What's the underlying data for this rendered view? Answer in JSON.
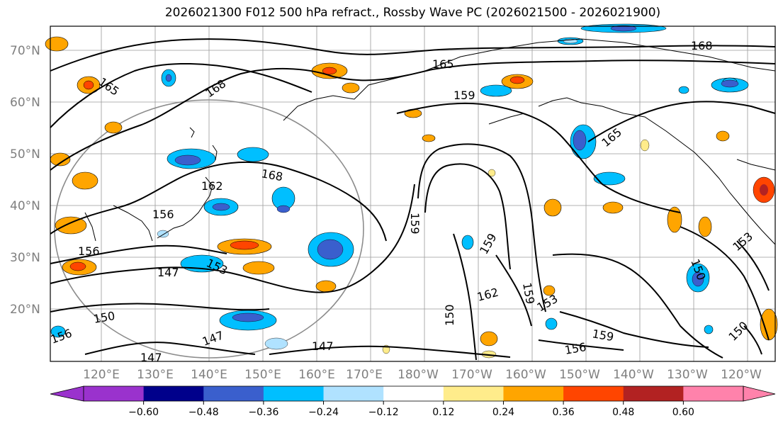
{
  "title": "2026021300 F012 500 hPa refract., Rossby Wave PC (2026021500 - 2026021900)",
  "map": {
    "lat_labels": [
      "70°N",
      "60°N",
      "50°N",
      "40°N",
      "30°N",
      "20°N"
    ],
    "lon_labels": [
      "120°E",
      "130°E",
      "140°E",
      "150°E",
      "160°E",
      "170°E",
      "180°W",
      "170°W",
      "160°W",
      "150°W",
      "140°W",
      "130°W",
      "120°W"
    ],
    "contour_labels": [
      "165",
      "168",
      "165",
      "168",
      "159",
      "165",
      "168",
      "162",
      "156",
      "156",
      "147",
      "153",
      "159",
      "159",
      "162",
      "159",
      "150",
      "153",
      "159",
      "156",
      "150",
      "147",
      "147",
      "150",
      "147",
      "156",
      "150",
      "153"
    ]
  },
  "colorbar": {
    "ticks": [
      "−0.60",
      "−0.48",
      "−0.36",
      "−0.24",
      "−0.12",
      "0.12",
      "0.24",
      "0.36",
      "0.48",
      "0.60"
    ],
    "colors": [
      "#9a32cd",
      "#00008b",
      "#3a5fcd",
      "#00bfff",
      "#b0e2ff",
      "#ffffff",
      "#ffec8b",
      "#ffa500",
      "#ff4500",
      "#b22222",
      "#ff82ab"
    ]
  }
}
